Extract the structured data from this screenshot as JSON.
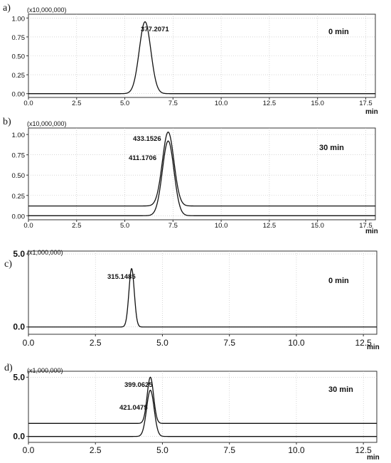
{
  "chart_data": [
    {
      "type": "line",
      "panel_label": "a)",
      "scale_label": "(x10,000,000)",
      "time_label": "0 min",
      "xlabel": "min",
      "xlim": [
        0,
        18.0
      ],
      "ylim": [
        -0.05,
        1.05
      ],
      "x_ticks": [
        "0.0",
        "2.5",
        "5.0",
        "7.5",
        "10.0",
        "12.5",
        "15.0",
        "17.5"
      ],
      "y_ticks": [
        "0.00",
        "0.25",
        "0.50",
        "0.75",
        "1.00"
      ],
      "grid": true,
      "series": [
        {
          "baseline": 0.0,
          "peaks": [
            {
              "x": 6.05,
              "height": 0.95,
              "sigma": 0.3,
              "label": "377.2071"
            }
          ]
        }
      ]
    },
    {
      "type": "line",
      "panel_label": "b)",
      "scale_label": "(x10,000,000)",
      "time_label": "30 min",
      "xlabel": "min",
      "xlim": [
        0,
        18.0
      ],
      "ylim": [
        -0.05,
        1.08
      ],
      "x_ticks": [
        "0.0",
        "2.5",
        "5.0",
        "7.5",
        "10.0",
        "12.5",
        "15.0",
        "17.5"
      ],
      "y_ticks": [
        "0.00",
        "0.25",
        "0.50",
        "0.75",
        "1.00"
      ],
      "grid": true,
      "series": [
        {
          "baseline": 0.12,
          "peaks": [
            {
              "x": 7.25,
              "height": 0.91,
              "sigma": 0.3,
              "label": "433.1526"
            }
          ]
        },
        {
          "baseline": 0.0,
          "peaks": [
            {
              "x": 7.25,
              "height": 0.92,
              "sigma": 0.3,
              "label": "411.1706"
            }
          ]
        }
      ]
    },
    {
      "type": "line",
      "panel_label": "c)",
      "scale_label": "(x1,000,000)",
      "time_label": "0 min",
      "xlabel": "min",
      "xlim": [
        0,
        13.0
      ],
      "ylim": [
        -0.5,
        5.2
      ],
      "x_ticks": [
        "0.0",
        "2.5",
        "5.0",
        "7.5",
        "10.0",
        "12.5"
      ],
      "y_ticks": [
        "0.0",
        "5.0"
      ],
      "grid": true,
      "series": [
        {
          "baseline": 0.0,
          "peaks": [
            {
              "x": 3.85,
              "height": 4.0,
              "sigma": 0.1,
              "label": "315.1485"
            }
          ]
        }
      ]
    },
    {
      "type": "line",
      "panel_label": "d)",
      "scale_label": "(x1,000,000)",
      "time_label": "30 min",
      "xlabel": "min",
      "xlim": [
        0,
        13.0
      ],
      "ylim": [
        -0.5,
        5.5
      ],
      "x_ticks": [
        "0.0",
        "2.5",
        "5.0",
        "7.5",
        "10.0",
        "12.5"
      ],
      "y_ticks": [
        "0.0",
        "5.0"
      ],
      "grid": true,
      "series": [
        {
          "baseline": 1.1,
          "peaks": [
            {
              "x": 4.55,
              "height": 3.9,
              "sigma": 0.12,
              "label": "399.0625"
            }
          ]
        },
        {
          "baseline": 0.0,
          "peaks": [
            {
              "x": 4.55,
              "height": 3.9,
              "sigma": 0.14,
              "label": "421.0475"
            }
          ]
        }
      ]
    }
  ]
}
